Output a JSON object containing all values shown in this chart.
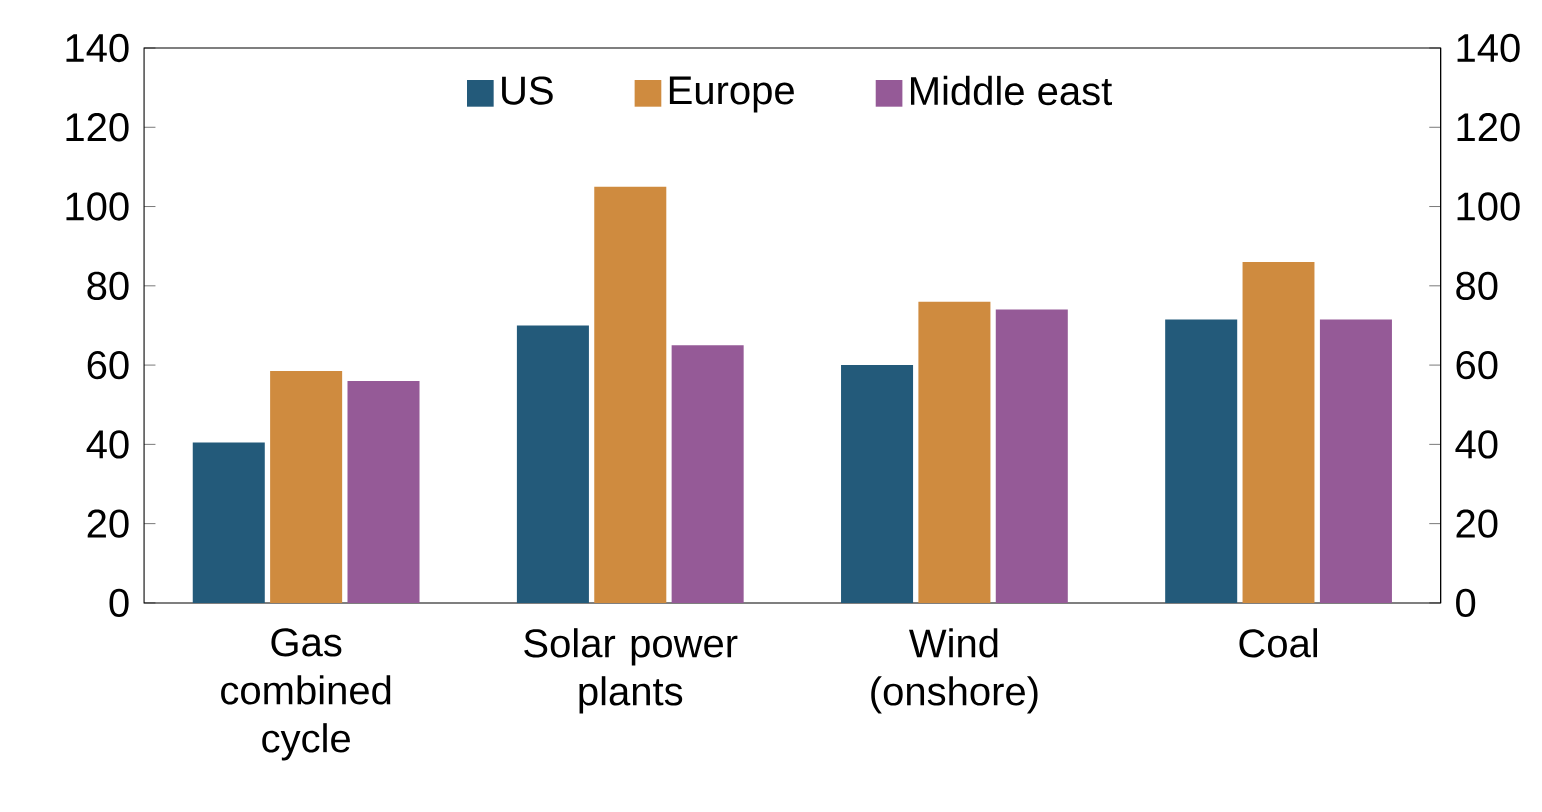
{
  "chart_data": {
    "type": "bar",
    "categories": [
      "Gas combined cycle",
      "Solar power plants",
      "Wind (onshore)",
      "Coal"
    ],
    "series": [
      {
        "name": "US",
        "color": "#235a7a",
        "values": [
          40.5,
          70,
          60,
          71.5
        ]
      },
      {
        "name": "Europe",
        "color": "#cf8b3f",
        "values": [
          58.5,
          105,
          76,
          86
        ]
      },
      {
        "name": "Middle east",
        "color": "#955a97",
        "values": [
          56,
          65,
          74,
          71.5
        ]
      }
    ],
    "ylim": [
      0,
      140
    ],
    "yticks": [
      0,
      20,
      40,
      60,
      80,
      100,
      120,
      140
    ],
    "y2lim": [
      0,
      140
    ],
    "y2ticks": [
      0,
      20,
      40,
      60,
      80,
      100,
      120,
      140
    ],
    "legend": "top",
    "grid": false
  }
}
